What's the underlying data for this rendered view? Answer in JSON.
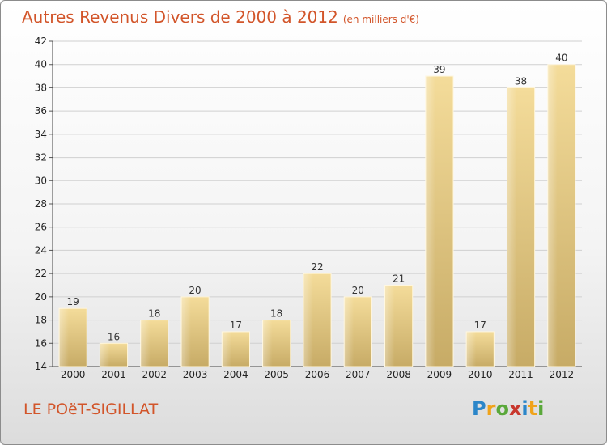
{
  "header": {
    "title": "Autres Revenus Divers de 2000 à 2012",
    "subtitle": "(en milliers d'€)"
  },
  "footer": {
    "city": "LE POëT-SIGILLAT",
    "logo_letters": [
      "P",
      "r",
      "o",
      "x",
      "i",
      "t",
      "i"
    ],
    "logo_colors": [
      "#2b86c9",
      "#f0a31a",
      "#5aa83a",
      "#c8372d",
      "#2b86c9",
      "#f0a31a",
      "#5aa83a"
    ]
  },
  "chart_data": {
    "type": "bar",
    "title": "Autres Revenus Divers de 2000 à 2012",
    "subtitle": "(en milliers d'€)",
    "categories": [
      "2000",
      "2001",
      "2002",
      "2003",
      "2004",
      "2005",
      "2006",
      "2007",
      "2008",
      "2009",
      "2010",
      "2011",
      "2012"
    ],
    "values": [
      19,
      16,
      18,
      20,
      17,
      18,
      22,
      20,
      21,
      39,
      17,
      38,
      40
    ],
    "ylim": [
      14,
      42
    ],
    "yticks": [
      14,
      16,
      18,
      20,
      22,
      24,
      26,
      28,
      30,
      32,
      34,
      36,
      38,
      40,
      42
    ],
    "grid": true,
    "bar_color": "#e8cd85"
  }
}
